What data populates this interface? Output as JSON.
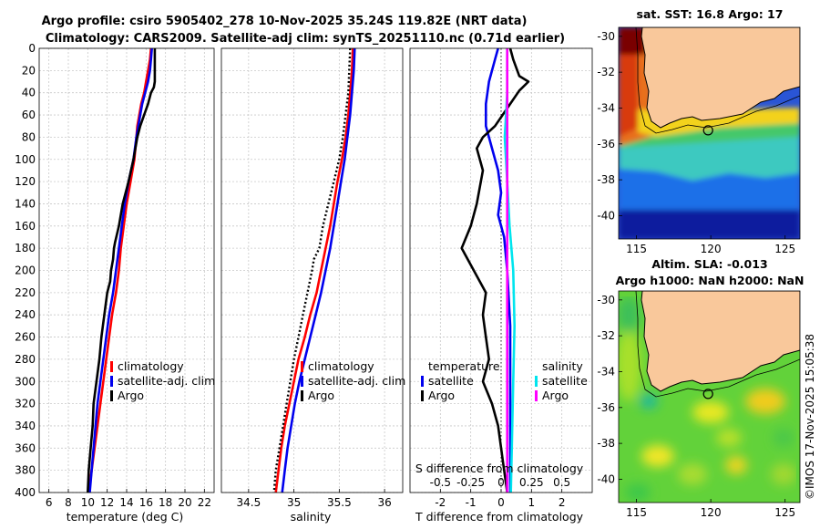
{
  "figure": {
    "title_line1": "Argo profile: csiro 5905402_278 10-Nov-2025 35.24S 119.82E (NRT data)",
    "title_line2": "Climatology: CARS2009. Satellite-adj clim: synTS_20251110.nc (0.71d earlier)",
    "stamp": "©IMOS 17-Nov-2025 15:05:38"
  },
  "colors": {
    "climatology": "#ff0000",
    "satellite": "#0000ee",
    "argo": "#000000",
    "sal_satellite": "#00e5ee",
    "sal_argo": "#ff00ff",
    "grid": "#c8c8c8",
    "land": "#f9c89b"
  },
  "chart_data": [
    {
      "type": "line",
      "name": "temperature-profile",
      "xlabel": "temperature (deg C)",
      "xlim": [
        5,
        23
      ],
      "xticks": [
        6,
        8,
        10,
        12,
        14,
        16,
        18,
        20,
        22
      ],
      "ylim": [
        400,
        0
      ],
      "yticks": [
        0,
        20,
        40,
        60,
        80,
        100,
        120,
        140,
        160,
        180,
        200,
        220,
        240,
        260,
        280,
        300,
        320,
        340,
        360,
        380,
        400
      ],
      "legend": [
        "climatology",
        "satellite-adj. clim",
        "Argo"
      ],
      "series": [
        {
          "name": "climatology",
          "color": "#ff0000",
          "points": [
            [
              16.5,
              0
            ],
            [
              16.4,
              10
            ],
            [
              16.2,
              20
            ],
            [
              16.0,
              30
            ],
            [
              15.8,
              40
            ],
            [
              15.5,
              50
            ],
            [
              15.3,
              60
            ],
            [
              15.1,
              70
            ],
            [
              15.0,
              80
            ],
            [
              14.8,
              100
            ],
            [
              14.4,
              120
            ],
            [
              14.0,
              140
            ],
            [
              13.7,
              160
            ],
            [
              13.4,
              180
            ],
            [
              13.2,
              200
            ],
            [
              12.9,
              220
            ],
            [
              12.5,
              240
            ],
            [
              12.2,
              260
            ],
            [
              11.9,
              280
            ],
            [
              11.6,
              300
            ],
            [
              11.3,
              320
            ],
            [
              11.0,
              340
            ],
            [
              10.7,
              360
            ],
            [
              10.4,
              380
            ],
            [
              10.1,
              400
            ]
          ]
        },
        {
          "name": "satellite-adj. clim",
          "color": "#0000ee",
          "points": [
            [
              16.6,
              0
            ],
            [
              16.5,
              10
            ],
            [
              16.4,
              20
            ],
            [
              16.2,
              30
            ],
            [
              15.9,
              40
            ],
            [
              15.6,
              50
            ],
            [
              15.4,
              60
            ],
            [
              15.2,
              70
            ],
            [
              15.0,
              80
            ],
            [
              14.7,
              100
            ],
            [
              14.2,
              120
            ],
            [
              13.8,
              140
            ],
            [
              13.5,
              160
            ],
            [
              13.2,
              180
            ],
            [
              12.9,
              200
            ],
            [
              12.6,
              220
            ],
            [
              12.2,
              240
            ],
            [
              11.9,
              260
            ],
            [
              11.6,
              280
            ],
            [
              11.3,
              300
            ],
            [
              11.0,
              320
            ],
            [
              10.8,
              340
            ],
            [
              10.6,
              360
            ],
            [
              10.4,
              380
            ],
            [
              10.2,
              400
            ]
          ]
        },
        {
          "name": "Argo",
          "color": "#000000",
          "points": [
            [
              16.9,
              0
            ],
            [
              16.9,
              10
            ],
            [
              16.9,
              20
            ],
            [
              16.9,
              30
            ],
            [
              16.8,
              35
            ],
            [
              16.5,
              40
            ],
            [
              16.2,
              50
            ],
            [
              15.8,
              60
            ],
            [
              15.4,
              70
            ],
            [
              15.1,
              80
            ],
            [
              14.7,
              100
            ],
            [
              14.2,
              120
            ],
            [
              13.6,
              140
            ],
            [
              13.2,
              160
            ],
            [
              12.8,
              175
            ],
            [
              12.7,
              180
            ],
            [
              12.6,
              190
            ],
            [
              12.4,
              200
            ],
            [
              12.3,
              210
            ],
            [
              12.0,
              220
            ],
            [
              11.7,
              240
            ],
            [
              11.4,
              260
            ],
            [
              11.2,
              280
            ],
            [
              10.9,
              300
            ],
            [
              10.6,
              320
            ],
            [
              10.5,
              340
            ],
            [
              10.3,
              360
            ],
            [
              10.1,
              380
            ],
            [
              10.0,
              400
            ]
          ]
        }
      ]
    },
    {
      "type": "line",
      "name": "salinity-profile",
      "xlabel": "salinity",
      "xlim": [
        34.2,
        36.2
      ],
      "xticks": [
        34.5,
        35,
        35.5,
        36
      ],
      "xticklabels": [
        "34.5",
        "35",
        "35.5",
        "36"
      ],
      "ylim": [
        400,
        0
      ],
      "legend": [
        "climatology",
        "satellite-adj. clim",
        "Argo"
      ],
      "series": [
        {
          "name": "climatology",
          "color": "#ff0000",
          "points": [
            [
              35.65,
              0
            ],
            [
              35.64,
              20
            ],
            [
              35.62,
              40
            ],
            [
              35.6,
              60
            ],
            [
              35.57,
              80
            ],
            [
              35.53,
              100
            ],
            [
              35.48,
              120
            ],
            [
              35.44,
              140
            ],
            [
              35.4,
              160
            ],
            [
              35.35,
              180
            ],
            [
              35.3,
              200
            ],
            [
              35.25,
              220
            ],
            [
              35.18,
              240
            ],
            [
              35.12,
              260
            ],
            [
              35.05,
              280
            ],
            [
              35.0,
              300
            ],
            [
              34.95,
              320
            ],
            [
              34.9,
              340
            ],
            [
              34.86,
              360
            ],
            [
              34.83,
              380
            ],
            [
              34.8,
              400
            ]
          ]
        },
        {
          "name": "satellite-adj. clim",
          "color": "#0000ee",
          "points": [
            [
              35.67,
              0
            ],
            [
              35.66,
              20
            ],
            [
              35.64,
              40
            ],
            [
              35.62,
              60
            ],
            [
              35.59,
              80
            ],
            [
              35.56,
              100
            ],
            [
              35.52,
              120
            ],
            [
              35.48,
              140
            ],
            [
              35.44,
              160
            ],
            [
              35.4,
              180
            ],
            [
              35.35,
              200
            ],
            [
              35.3,
              220
            ],
            [
              35.24,
              240
            ],
            [
              35.18,
              260
            ],
            [
              35.12,
              280
            ],
            [
              35.06,
              300
            ],
            [
              35.01,
              320
            ],
            [
              34.97,
              340
            ],
            [
              34.93,
              360
            ],
            [
              34.9,
              380
            ],
            [
              34.87,
              400
            ]
          ]
        },
        {
          "name": "Argo",
          "color": "#000000",
          "dotted": true,
          "points": [
            [
              35.62,
              0
            ],
            [
              35.61,
              20
            ],
            [
              35.6,
              40
            ],
            [
              35.57,
              60
            ],
            [
              35.54,
              80
            ],
            [
              35.5,
              100
            ],
            [
              35.44,
              120
            ],
            [
              35.38,
              140
            ],
            [
              35.32,
              160
            ],
            [
              35.28,
              180
            ],
            [
              35.22,
              190
            ],
            [
              35.2,
              200
            ],
            [
              35.15,
              220
            ],
            [
              35.1,
              240
            ],
            [
              35.05,
              260
            ],
            [
              35.0,
              280
            ],
            [
              34.96,
              300
            ],
            [
              34.92,
              320
            ],
            [
              34.88,
              340
            ],
            [
              34.84,
              360
            ],
            [
              34.8,
              380
            ],
            [
              34.78,
              400
            ]
          ]
        }
      ]
    },
    {
      "type": "line",
      "name": "difference-profile",
      "xlabel": "T difference from climatology",
      "xlim": [
        -3,
        3
      ],
      "xticks": [
        -2,
        -1,
        0,
        1,
        2
      ],
      "top_axis_label": "S difference from climatology",
      "top_xticks": [
        -0.5,
        -0.25,
        0,
        0.25,
        0.5
      ],
      "top_xticklabels": [
        "-0.5",
        "-0.25",
        "0",
        "0.25",
        "0.5"
      ],
      "ylim": [
        400,
        0
      ],
      "legend_temperature_header": "temperature",
      "legend_salinity_header": "salinity",
      "legend_temperature": [
        "satellite",
        "Argo"
      ],
      "legend_salinity": [
        "satellite",
        "Argo"
      ],
      "series": [
        {
          "name": "T satellite",
          "color": "#0000ee",
          "points": [
            [
              -0.1,
              0
            ],
            [
              -0.2,
              10
            ],
            [
              -0.4,
              30
            ],
            [
              -0.5,
              50
            ],
            [
              -0.5,
              70
            ],
            [
              -0.3,
              90
            ],
            [
              -0.1,
              110
            ],
            [
              0.0,
              130
            ],
            [
              -0.1,
              150
            ],
            [
              0.1,
              170
            ],
            [
              0.2,
              200
            ],
            [
              0.3,
              250
            ],
            [
              0.3,
              300
            ],
            [
              0.3,
              350
            ],
            [
              0.3,
              400
            ]
          ]
        },
        {
          "name": "T Argo",
          "color": "#000000",
          "points": [
            [
              0.3,
              0
            ],
            [
              0.4,
              10
            ],
            [
              0.6,
              25
            ],
            [
              0.9,
              30
            ],
            [
              0.6,
              38
            ],
            [
              0.3,
              50
            ],
            [
              -0.2,
              70
            ],
            [
              -0.6,
              80
            ],
            [
              -0.8,
              90
            ],
            [
              -0.6,
              110
            ],
            [
              -0.8,
              140
            ],
            [
              -1.0,
              160
            ],
            [
              -1.3,
              180
            ],
            [
              -0.9,
              200
            ],
            [
              -0.5,
              220
            ],
            [
              -0.6,
              240
            ],
            [
              -0.5,
              260
            ],
            [
              -0.4,
              280
            ],
            [
              -0.6,
              300
            ],
            [
              -0.3,
              320
            ],
            [
              -0.1,
              340
            ],
            [
              0.0,
              360
            ],
            [
              0.1,
              380
            ],
            [
              0.2,
              400
            ]
          ]
        },
        {
          "name": "S satellite",
          "color": "#00e5ee",
          "points": [
            [
              0.05,
              0
            ],
            [
              0.05,
              40
            ],
            [
              0.03,
              80
            ],
            [
              0.05,
              120
            ],
            [
              0.07,
              160
            ],
            [
              0.1,
              200
            ],
            [
              0.11,
              250
            ],
            [
              0.1,
              300
            ],
            [
              0.09,
              350
            ],
            [
              0.08,
              400
            ]
          ]
        },
        {
          "name": "S Argo",
          "color": "#ff00ff",
          "points": [
            [
              0.05,
              0
            ],
            [
              0.05,
              100
            ],
            [
              0.05,
              200
            ],
            [
              0.05,
              400
            ]
          ]
        }
      ]
    },
    {
      "type": "heatmap",
      "name": "sst-map",
      "title": "sat. SST: 16.8 Argo: 17",
      "xticks": [
        115,
        120,
        125
      ],
      "yticks": [
        -30,
        -32,
        -34,
        -36,
        -38,
        -40
      ],
      "xlim": [
        113.8,
        126
      ],
      "ylim": [
        -41.3,
        -29.5
      ],
      "marker_lonlat": [
        119.82,
        -35.24
      ]
    },
    {
      "type": "heatmap",
      "name": "sla-map",
      "title_line1": "Altim. SLA: -0.013",
      "title_line2": "Argo h1000: NaN h2000: NaN",
      "xticks": [
        115,
        120,
        125
      ],
      "yticks": [
        -30,
        -32,
        -34,
        -36,
        -38,
        -40
      ],
      "xlim": [
        113.8,
        126
      ],
      "ylim": [
        -41.3,
        -29.5
      ],
      "marker_lonlat": [
        119.82,
        -35.24
      ]
    }
  ]
}
